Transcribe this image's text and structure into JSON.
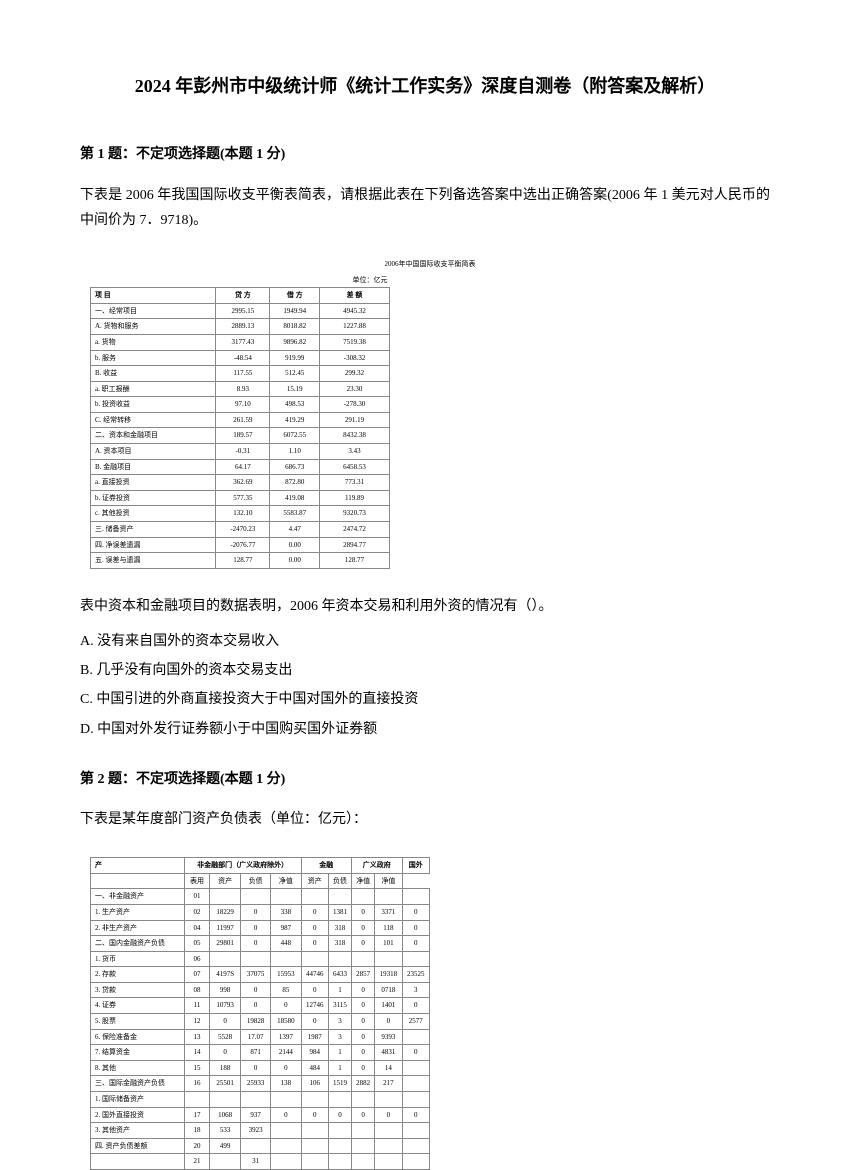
{
  "title": "2024 年彭州市中级统计师《统计工作实务》深度自测卷（附答案及解析）",
  "q1": {
    "header": "第 1 题：不定项选择题(本题 1 分)",
    "intro": "下表是 2006 年我国国际收支平衡表简表，请根据此表在下列备选答案中选出正确答案(2006 年 1 美元对人民币的中间价为 7．9718)。",
    "prompt": "表中资本和金融项目的数据表明，2006 年资本交易和利用外资的情况有（）。",
    "options": {
      "a": "A. 没有来自国外的资本交易收入",
      "b": "B. 几乎没有向国外的资本交易支出",
      "c": "C. 中国引进的外商直接投资大于中国对国外的直接投资",
      "d": "D. 中国对外发行证券额小于中国购买国外证券额"
    }
  },
  "q2": {
    "header": "第 2 题：不定项选择题(本题 1 分)",
    "intro": "下表是某年度部门资产负债表（单位：亿元）："
  },
  "table1": {
    "title": "2006年中国国际收支平衡简表",
    "unit": "单位：亿元",
    "col_headers": [
      "项  目",
      "贷  方",
      "借  方",
      "差  额"
    ],
    "rows": [
      [
        "一、经常项目",
        "2995.15",
        "1949.94",
        "4945.32"
      ],
      [
        "A. 货物和服务",
        "2889.13",
        "8018.82",
        "1227.88"
      ],
      [
        "a. 货物",
        "3177.43",
        "9896.82",
        "7519.38"
      ],
      [
        "b. 服务",
        "-48.54",
        "919.99",
        "-308.32"
      ],
      [
        "B. 收益",
        "117.55",
        "512.45",
        "299.32"
      ],
      [
        "a. 职工报酬",
        "8.93",
        "15.19",
        "23.30"
      ],
      [
        "b. 投资收益",
        "97.10",
        "498.53",
        "-278.30"
      ],
      [
        "C. 经常转移",
        "261.59",
        "419.29",
        "291.19"
      ],
      [
        "二、资本和金融项目",
        "189.57",
        "6072.55",
        "8432.38"
      ],
      [
        "A. 资本项目",
        "-0.31",
        "1.10",
        "3.43"
      ],
      [
        "B. 金融项目",
        "64.17",
        "686.73",
        "6458.53"
      ],
      [
        "a. 直接投资",
        "362.69",
        "872.80",
        "773.31"
      ],
      [
        "b. 证券投资",
        "577.35",
        "419.08",
        "119.89"
      ],
      [
        "c. 其他投资",
        "132.10",
        "5583.87",
        "9320.73"
      ],
      [
        "三. 储备资产",
        "-2470.23",
        "4.47",
        "2474.72"
      ],
      [
        "四. 净误差遗漏",
        "-2076.77",
        "0.00",
        "2894.77"
      ],
      [
        "五. 误差与遗漏",
        "128.77",
        "0.00",
        "128.77"
      ]
    ]
  },
  "table2": {
    "header_top": [
      "产",
      "非金融部门（广义政府除外）",
      "金融",
      "广义政府",
      "国外"
    ],
    "col_headers": [
      "",
      "表用",
      "资产",
      "负债",
      "净值",
      "资产",
      "负债",
      "净值",
      "净值"
    ],
    "rows": [
      [
        "一、非金融资产",
        "01",
        "",
        "",
        "",
        "",
        "",
        "",
        ""
      ],
      [
        "1. 生产资产",
        "02",
        "18229",
        "0",
        "338",
        "0",
        "1381",
        "0",
        "3371",
        "0"
      ],
      [
        "2. 非生产资产",
        "04",
        "11997",
        "0",
        "987",
        "0",
        "318",
        "0",
        "118",
        "0"
      ],
      [
        "二、国内金融资产负债",
        "05",
        "29801",
        "0",
        "448",
        "0",
        "318",
        "0",
        "101",
        "0"
      ],
      [
        "1. 货币",
        "06",
        "",
        "",
        "",
        "",
        "",
        "",
        "",
        ""
      ],
      [
        "2. 存款",
        "07",
        "4197S",
        "37075",
        "15953",
        "44746",
        "6433",
        "2857",
        "19318",
        "23525"
      ],
      [
        "3. 贷款",
        "08",
        "998",
        "0",
        "85",
        "0",
        "1",
        "0",
        "0718",
        "3"
      ],
      [
        "4. 证券",
        "11",
        "10793",
        "0",
        "0",
        "12746",
        "3115",
        "0",
        "1401",
        "0"
      ],
      [
        "5. 股票",
        "12",
        "0",
        "19828",
        "18580",
        "0",
        "3",
        "0",
        "0",
        "2577"
      ],
      [
        "6. 保险准备金",
        "13",
        "5528",
        "17.07",
        "1397",
        "1987",
        "3",
        "0",
        "9393",
        ""
      ],
      [
        "7. 结算资金",
        "14",
        "0",
        "871",
        "2144",
        "984",
        "1",
        "0",
        "4831",
        "0"
      ],
      [
        "8. 其他",
        "15",
        "188",
        "0",
        "0",
        "484",
        "1",
        "0",
        "14",
        ""
      ],
      [
        "三、国际金融资产负债",
        "16",
        "25501",
        "25933",
        "138",
        "106",
        "1519",
        "2882",
        "217",
        ""
      ],
      [
        "1. 国际储备资产",
        "",
        "",
        "",
        "",
        "",
        "",
        "",
        "",
        ""
      ],
      [
        "2. 国外直接投资",
        "17",
        "1068",
        "937",
        "0",
        "0",
        "0",
        "0",
        "0",
        "0"
      ],
      [
        "3. 其他资产",
        "18",
        "533",
        "3923",
        "",
        "",
        "",
        "",
        "",
        ""
      ],
      [
        "四. 资产负债差额",
        "20",
        "499",
        "",
        "",
        "",
        "",
        "",
        "",
        ""
      ],
      [
        "",
        "21",
        "",
        "31",
        "",
        "",
        "",
        "",
        "",
        ""
      ]
    ]
  }
}
